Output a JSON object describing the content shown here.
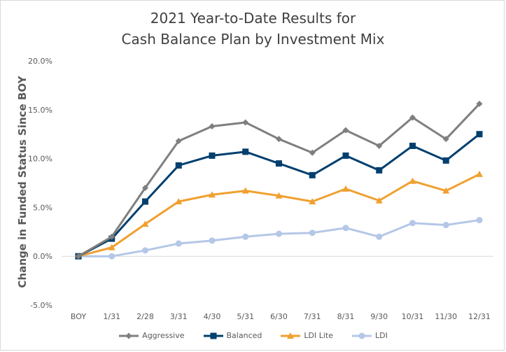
{
  "chart_data": {
    "type": "line",
    "title_lines": [
      "2021 Year-to-Date Results for",
      "Cash Balance Plan by Investment Mix"
    ],
    "xlabel": "",
    "ylabel": "Change in Funded Status Since BOY",
    "categories": [
      "BOY",
      "1/31",
      "2/28",
      "3/31",
      "4/30",
      "5/31",
      "6/30",
      "7/31",
      "8/31",
      "9/30",
      "10/31",
      "11/30",
      "12/31"
    ],
    "yticks": [
      "-5.0%",
      "0.0%",
      "5.0%",
      "10.0%",
      "15.0%",
      "20.0%"
    ],
    "ylim": [
      -5,
      20
    ],
    "grid": false,
    "legend_position": "bottom",
    "series": [
      {
        "name": "Aggressive",
        "color": "#7f7f7f",
        "marker": "diamond",
        "values": [
          0.0,
          2.0,
          7.0,
          11.8,
          13.3,
          13.7,
          12.0,
          10.6,
          12.9,
          11.3,
          14.2,
          12.0,
          15.6
        ]
      },
      {
        "name": "Balanced",
        "color": "#003f6e",
        "marker": "square",
        "values": [
          0.0,
          1.8,
          5.6,
          9.3,
          10.3,
          10.7,
          9.5,
          8.3,
          10.3,
          8.8,
          11.3,
          9.8,
          12.5
        ]
      },
      {
        "name": "LDI Lite",
        "color": "#f0a030",
        "marker": "triangle",
        "values": [
          0.0,
          0.9,
          3.3,
          5.6,
          6.3,
          6.7,
          6.2,
          5.6,
          6.9,
          5.7,
          7.7,
          6.7,
          8.4
        ]
      },
      {
        "name": "LDI",
        "color": "#b4c7e7",
        "marker": "circle",
        "values": [
          0.0,
          0.0,
          0.6,
          1.3,
          1.6,
          2.0,
          2.3,
          2.4,
          2.9,
          2.0,
          3.4,
          3.2,
          3.7
        ]
      }
    ]
  }
}
